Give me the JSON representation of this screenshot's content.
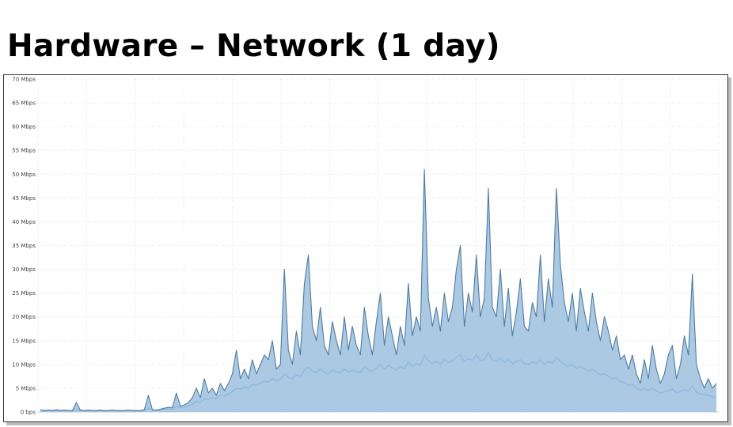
{
  "page": {
    "title": "Hardware – Network (1 day)"
  },
  "colors": {
    "primary": "#4f7ba2",
    "secondary": "#8fb8e0",
    "area": "#a2c3df",
    "grid": "#e4e4e4"
  },
  "chart_data": {
    "type": "area",
    "title": "",
    "xlabel": "",
    "ylabel": "",
    "ylim": [
      0,
      70
    ],
    "y_unit": "Mbps",
    "y_ticks": [
      {
        "value": 0,
        "label": "0 bps"
      },
      {
        "value": 5,
        "label": "5 Mbps"
      },
      {
        "value": 10,
        "label": "10 Mbps"
      },
      {
        "value": 15,
        "label": "15 Mbps"
      },
      {
        "value": 20,
        "label": "20 Mbps"
      },
      {
        "value": 25,
        "label": "25 Mbps"
      },
      {
        "value": 30,
        "label": "30 Mbps"
      },
      {
        "value": 35,
        "label": "35 Mbps"
      },
      {
        "value": 40,
        "label": "40 Mbps"
      },
      {
        "value": 45,
        "label": "45 Mbps"
      },
      {
        "value": 50,
        "label": "50 Mbps"
      },
      {
        "value": 55,
        "label": "55 Mbps"
      },
      {
        "value": 60,
        "label": "60 Mbps"
      },
      {
        "value": 65,
        "label": "65 Mbps"
      },
      {
        "value": 70,
        "label": "70 Mbps"
      }
    ],
    "grid": true,
    "legend": "none",
    "series": [
      {
        "role": "peak",
        "values": [
          0.5,
          0.3,
          0.4,
          0.3,
          0.5,
          0.3,
          0.4,
          0.3,
          0.3,
          2.0,
          0.4,
          0.3,
          0.4,
          0.3,
          0.3,
          0.4,
          0.3,
          0.3,
          0.4,
          0.3,
          0.3,
          0.3,
          0.4,
          0.3,
          0.3,
          0.3,
          0.5,
          3.5,
          0.5,
          0.4,
          0.6,
          0.8,
          1.0,
          0.9,
          4.0,
          1.2,
          1.5,
          2.0,
          3.0,
          5.0,
          3.0,
          7.0,
          4.0,
          5.0,
          3.5,
          6.0,
          4.5,
          6.0,
          8.0,
          13.0,
          7.0,
          9.0,
          7.0,
          11.0,
          8.0,
          10.0,
          12.0,
          11.0,
          15.0,
          9.0,
          10.0,
          30.0,
          13.0,
          10.0,
          17.0,
          12.0,
          27.0,
          33.0,
          18.0,
          15.0,
          22.0,
          14.0,
          12.0,
          19.0,
          15.0,
          12.0,
          20.0,
          13.0,
          18.0,
          14.0,
          12.0,
          22.0,
          16.0,
          12.0,
          19.0,
          25.0,
          14.0,
          20.0,
          16.0,
          12.0,
          18.0,
          14.0,
          27.0,
          16.0,
          20.0,
          17.0,
          51.0,
          24.0,
          18.0,
          22.0,
          17.0,
          25.0,
          19.0,
          22.0,
          30.0,
          35.0,
          18.0,
          25.0,
          21.0,
          33.0,
          20.0,
          24.0,
          47.0,
          22.0,
          20.0,
          30.0,
          18.0,
          26.0,
          16.0,
          21.0,
          28.0,
          18.0,
          17.0,
          23.0,
          20.0,
          33.0,
          19.0,
          28.0,
          22.0,
          47.0,
          31.0,
          23.0,
          19.0,
          25.0,
          17.0,
          26.0,
          21.0,
          17.0,
          25.0,
          19.0,
          15.0,
          20.0,
          17.0,
          13.0,
          16.0,
          11.0,
          12.0,
          9.0,
          12.0,
          8.0,
          6.0,
          11.0,
          7.0,
          14.0,
          9.0,
          6.0,
          8.0,
          12.0,
          14.0,
          7.0,
          10.0,
          16.0,
          12.0,
          29.0,
          10.0,
          7.0,
          5.0,
          7.0,
          5.0,
          6.0
        ]
      },
      {
        "role": "average",
        "values": [
          0.3,
          0.2,
          0.3,
          0.2,
          0.3,
          0.2,
          0.3,
          0.2,
          0.2,
          0.5,
          0.3,
          0.2,
          0.3,
          0.2,
          0.2,
          0.3,
          0.2,
          0.2,
          0.3,
          0.2,
          0.2,
          0.2,
          0.3,
          0.2,
          0.2,
          0.2,
          0.3,
          0.8,
          0.4,
          0.3,
          0.4,
          0.5,
          0.7,
          0.6,
          1.2,
          0.9,
          1.0,
          1.3,
          1.6,
          2.2,
          2.0,
          2.8,
          2.6,
          3.0,
          2.8,
          3.5,
          3.3,
          3.8,
          4.3,
          5.0,
          4.8,
          5.2,
          5.0,
          5.8,
          5.6,
          6.0,
          6.5,
          6.3,
          7.0,
          6.6,
          6.8,
          8.0,
          7.3,
          7.0,
          7.8,
          7.5,
          8.8,
          9.5,
          8.6,
          8.2,
          9.0,
          8.3,
          8.0,
          8.8,
          8.5,
          8.2,
          9.0,
          8.4,
          8.8,
          8.5,
          8.3,
          9.5,
          8.9,
          8.5,
          9.2,
          10.0,
          9.0,
          9.8,
          9.3,
          8.8,
          9.6,
          9.1,
          10.5,
          9.6,
          10.2,
          9.8,
          12.0,
          10.8,
          10.2,
          10.6,
          10.0,
          11.0,
          10.4,
          10.8,
          11.5,
          12.0,
          10.6,
          11.2,
          10.9,
          12.0,
          10.8,
          11.0,
          12.5,
          10.9,
          10.6,
          11.4,
          10.4,
          11.0,
          10.2,
          10.6,
          11.0,
          10.2,
          10.0,
          10.5,
          10.2,
          11.0,
          10.0,
          10.6,
          10.2,
          11.5,
          10.6,
          10.0,
          9.6,
          10.0,
          9.2,
          9.6,
          9.0,
          8.6,
          9.0,
          8.4,
          7.8,
          8.0,
          7.5,
          7.0,
          7.2,
          6.4,
          6.2,
          5.6,
          5.8,
          5.0,
          4.6,
          5.0,
          4.5,
          5.0,
          4.4,
          4.0,
          4.2,
          4.5,
          4.8,
          4.0,
          4.3,
          4.6,
          4.4,
          5.5,
          4.2,
          3.8,
          3.5,
          3.6,
          3.2,
          3.0
        ]
      }
    ]
  }
}
